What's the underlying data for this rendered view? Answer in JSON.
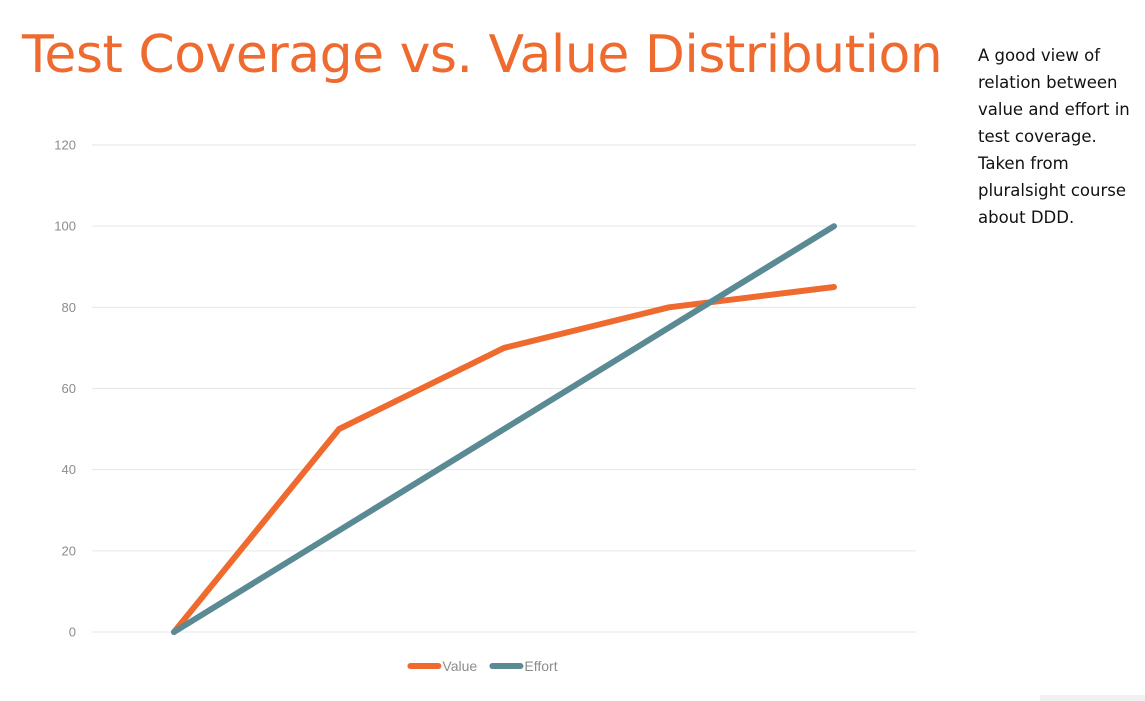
{
  "title": "Test Coverage vs. Value Distribution",
  "note": "A good view of relation between value and effort in test coverage. Taken from pluralsight course about DDD.",
  "chart_data": {
    "type": "line",
    "title": "Test Coverage vs. Value Distribution",
    "x": [
      0,
      1,
      2,
      3,
      4
    ],
    "xlabel": "",
    "ylabel": "",
    "ylim": [
      0,
      120
    ],
    "yticks": [
      0,
      20,
      40,
      60,
      80,
      100,
      120
    ],
    "grid": true,
    "legend": "bottom",
    "series": [
      {
        "name": "Value",
        "values": [
          0,
          50,
          70,
          80,
          85
        ],
        "color": "#ee6a2e"
      },
      {
        "name": "Effort",
        "values": [
          0,
          25,
          50,
          75,
          100
        ],
        "color": "#5a8a94"
      }
    ]
  }
}
